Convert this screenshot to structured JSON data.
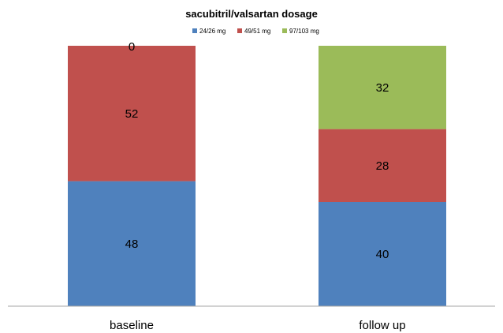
{
  "chart_data": {
    "type": "bar",
    "stacked": true,
    "title": "sacubitril/valsartan dosage",
    "categories": [
      "baseline",
      "follow up"
    ],
    "series": [
      {
        "name": "24/26 mg",
        "values": [
          48,
          40
        ],
        "color": "#4f81bd"
      },
      {
        "name": "49/51 mg",
        "values": [
          52,
          28
        ],
        "color": "#c0504d"
      },
      {
        "name": "97/103 mg",
        "values": [
          0,
          32
        ],
        "color": "#9bbb59"
      }
    ],
    "xlabel": "",
    "ylabel": "",
    "ylim": [
      0,
      100
    ],
    "grid": false,
    "legend_position": "top",
    "data_labels": true
  }
}
